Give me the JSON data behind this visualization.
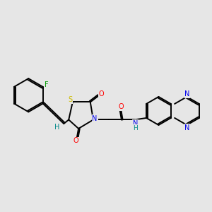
{
  "background_color": "#e6e6e6",
  "fig_size": [
    3.0,
    3.0
  ],
  "dpi": 100,
  "atom_colors": {
    "C": "#000000",
    "N": "#0000ee",
    "O": "#ff0000",
    "S": "#ccbb00",
    "F": "#009900",
    "H": "#008888"
  },
  "bond_color": "#000000",
  "bond_lw": 1.4,
  "font_size_atom": 7.0
}
